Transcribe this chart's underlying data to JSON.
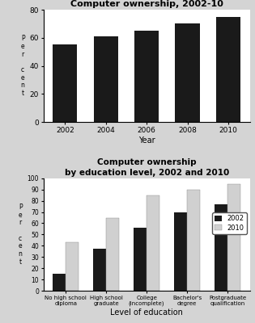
{
  "chart1": {
    "title": "Computer ownership, 2002-10",
    "years": [
      2002,
      2004,
      2006,
      2008,
      2010
    ],
    "values": [
      55,
      61,
      65,
      70,
      75
    ],
    "bar_color": "#1a1a1a",
    "ylabel_lines": [
      "P",
      "e",
      "r",
      "",
      "c",
      "e",
      "n",
      "t"
    ],
    "xlabel": "Year",
    "ylim": [
      0,
      80
    ],
    "yticks": [
      0,
      20,
      40,
      60,
      80
    ]
  },
  "chart2": {
    "title": "Computer ownership\nby education level, 2002 and 2010",
    "categories": [
      "No high school\ndiploma",
      "High school\ngraduate",
      "College\n(incomplete)",
      "Bachelor's\ndegree",
      "Postgraduate\nqualification"
    ],
    "values_2002": [
      15,
      37,
      56,
      70,
      77
    ],
    "values_2010": [
      43,
      65,
      85,
      90,
      95
    ],
    "color_2002": "#1a1a1a",
    "color_2010": "#d0d0d0",
    "ylabel_lines": [
      "P",
      "e",
      "r",
      "",
      "c",
      "e",
      "n",
      "t"
    ],
    "xlabel": "Level of education",
    "ylim": [
      0,
      100
    ],
    "yticks": [
      0,
      10,
      20,
      30,
      40,
      50,
      60,
      70,
      80,
      90,
      100
    ],
    "legend_labels": [
      "2002",
      "2010"
    ]
  },
  "bg_color": "#d4d4d4"
}
